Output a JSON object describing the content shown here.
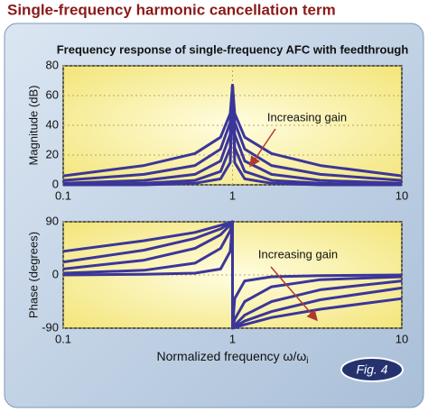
{
  "title": "Single-frequency harmonic cancellation term",
  "figure_label": "Fig. 4",
  "chart_data": [
    {
      "type": "line",
      "title": "Frequency response of single-frequency AFC with feedthrough",
      "ylabel": "Magnitude (dB)",
      "annotation": "Increasing gain",
      "x": [
        0.1,
        0.3,
        0.6,
        0.85,
        0.97,
        1,
        1.03,
        1.18,
        1.7,
        3.3,
        10
      ],
      "xlim": [
        0.1,
        10
      ],
      "xticks": [
        0.1,
        1,
        10
      ],
      "xscale": "log",
      "ylim": [
        0,
        80
      ],
      "yticks": [
        0,
        20,
        40,
        60,
        80
      ],
      "grid": true,
      "series": [
        {
          "color": "#3b3699",
          "values": [
            0,
            0,
            1,
            4,
            15,
            67,
            15,
            4,
            1,
            0,
            0
          ]
        },
        {
          "color": "#3b3699",
          "values": [
            0,
            1,
            3,
            9,
            25,
            67,
            25,
            9,
            3,
            1,
            0
          ]
        },
        {
          "color": "#3b3699",
          "values": [
            1,
            3,
            7,
            16,
            34,
            67,
            34,
            16,
            7,
            3,
            1
          ]
        },
        {
          "color": "#3b3699",
          "values": [
            3,
            7,
            13,
            24,
            42,
            67,
            42,
            24,
            13,
            7,
            3
          ]
        },
        {
          "color": "#3b3699",
          "values": [
            6,
            13,
            21,
            32,
            48,
            67,
            48,
            32,
            21,
            13,
            6
          ]
        }
      ]
    },
    {
      "type": "line",
      "ylabel": "Phase (degrees)",
      "annotation": "Increasing gain",
      "xlabel": "Normalized frequency ω/ω",
      "xlabel_subscript": "i",
      "x": [
        0.1,
        0.3,
        0.6,
        0.85,
        0.97,
        1,
        1,
        1.03,
        1.18,
        1.7,
        3.3,
        10
      ],
      "xlim": [
        0.1,
        10
      ],
      "xticks": [
        0.1,
        1,
        10
      ],
      "xscale": "log",
      "ylim": [
        -90,
        90
      ],
      "yticks": [
        -90,
        0,
        90
      ],
      "grid": true,
      "series": [
        {
          "color": "#3b3699",
          "values": [
            0,
            1,
            3,
            10,
            40,
            90,
            -90,
            -40,
            -10,
            -3,
            -1,
            0
          ]
        },
        {
          "color": "#3b3699",
          "values": [
            3,
            8,
            20,
            45,
            75,
            90,
            -90,
            -75,
            -45,
            -20,
            -8,
            -3
          ]
        },
        {
          "color": "#3b3699",
          "values": [
            10,
            25,
            45,
            68,
            85,
            90,
            -90,
            -85,
            -68,
            -45,
            -25,
            -10
          ]
        },
        {
          "color": "#3b3699",
          "values": [
            22,
            42,
            62,
            78,
            88,
            90,
            -90,
            -88,
            -78,
            -62,
            -42,
            -22
          ]
        },
        {
          "color": "#3b3699",
          "values": [
            40,
            58,
            72,
            84,
            89,
            90,
            -90,
            -89,
            -84,
            -72,
            -58,
            -40
          ]
        }
      ]
    }
  ]
}
